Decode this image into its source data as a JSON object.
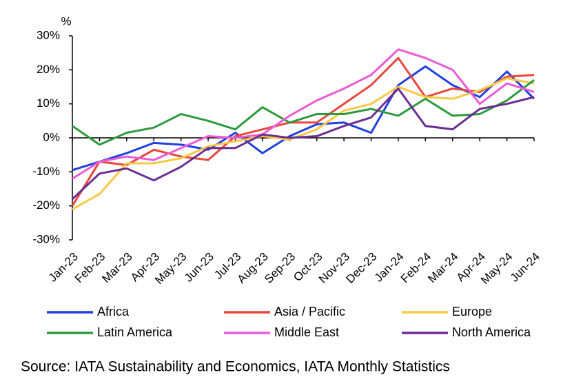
{
  "chart_data": {
    "type": "line",
    "y_label": "%",
    "source": "Source: IATA Sustainability and Economics, IATA Monthly Statistics",
    "categories": [
      "Jan-23",
      "Feb-23",
      "Mar-23",
      "Apr-23",
      "May-23",
      "Jun-23",
      "Jul-23",
      "Aug-23",
      "Sep-23",
      "Oct-23",
      "Nov-23",
      "Dec-23",
      "Jan-24",
      "Feb-24",
      "Mar-24",
      "Apr-24",
      "May-24",
      "Jun-24"
    ],
    "series": [
      {
        "name": "Africa",
        "color": "#1f3fe0",
        "values": [
          -9.5,
          -7,
          -4.5,
          -1.5,
          -2,
          -3.5,
          1.5,
          -4.5,
          0.5,
          4,
          4.5,
          1.5,
          15.5,
          21,
          15.5,
          12,
          19.5,
          11.5
        ]
      },
      {
        "name": "Asia / Pacific",
        "color": "#e8473a",
        "values": [
          -20,
          -7,
          -8,
          -3.5,
          -5.5,
          -6.5,
          0.5,
          2.5,
          4.5,
          4.5,
          10,
          15.5,
          23.5,
          12,
          14.5,
          13.5,
          18,
          18.5
        ]
      },
      {
        "name": "Europe",
        "color": "#f8c846",
        "values": [
          -21,
          -16.5,
          -7.5,
          -7.5,
          -6,
          -2.5,
          -1,
          0.5,
          -0.5,
          2.5,
          8,
          10,
          15,
          12,
          11.5,
          14,
          17.5,
          16
        ]
      },
      {
        "name": "Latin America",
        "color": "#2e9a3e",
        "values": [
          3.5,
          -2,
          1.5,
          3,
          7,
          5,
          2.5,
          9,
          4.5,
          7,
          7,
          8.5,
          6.5,
          11.5,
          6.5,
          7,
          11,
          17
        ]
      },
      {
        "name": "Middle East",
        "color": "#ec5ad6",
        "values": [
          -12,
          -7,
          -5.5,
          -6.5,
          -3,
          0.5,
          0,
          1,
          6.5,
          11,
          14.5,
          18.5,
          26,
          23.5,
          20,
          10,
          16,
          13.5
        ]
      },
      {
        "name": "North America",
        "color": "#6a2d91",
        "values": [
          -18,
          -10.5,
          -9,
          -12.5,
          -8.5,
          -3,
          -3,
          1,
          0,
          0.5,
          3.5,
          6,
          14.5,
          3.5,
          2.5,
          8.5,
          10,
          12
        ]
      }
    ],
    "ylim": [
      -30,
      30
    ],
    "yticks": [
      {
        "value": 30,
        "label": "30%"
      },
      {
        "value": 20,
        "label": "20%"
      },
      {
        "value": 10,
        "label": "10%"
      },
      {
        "value": 0,
        "label": "0%"
      },
      {
        "value": -10,
        "label": "-10%"
      },
      {
        "value": -20,
        "label": "-20%"
      },
      {
        "value": -30,
        "label": "-30%"
      }
    ],
    "grid": false
  }
}
